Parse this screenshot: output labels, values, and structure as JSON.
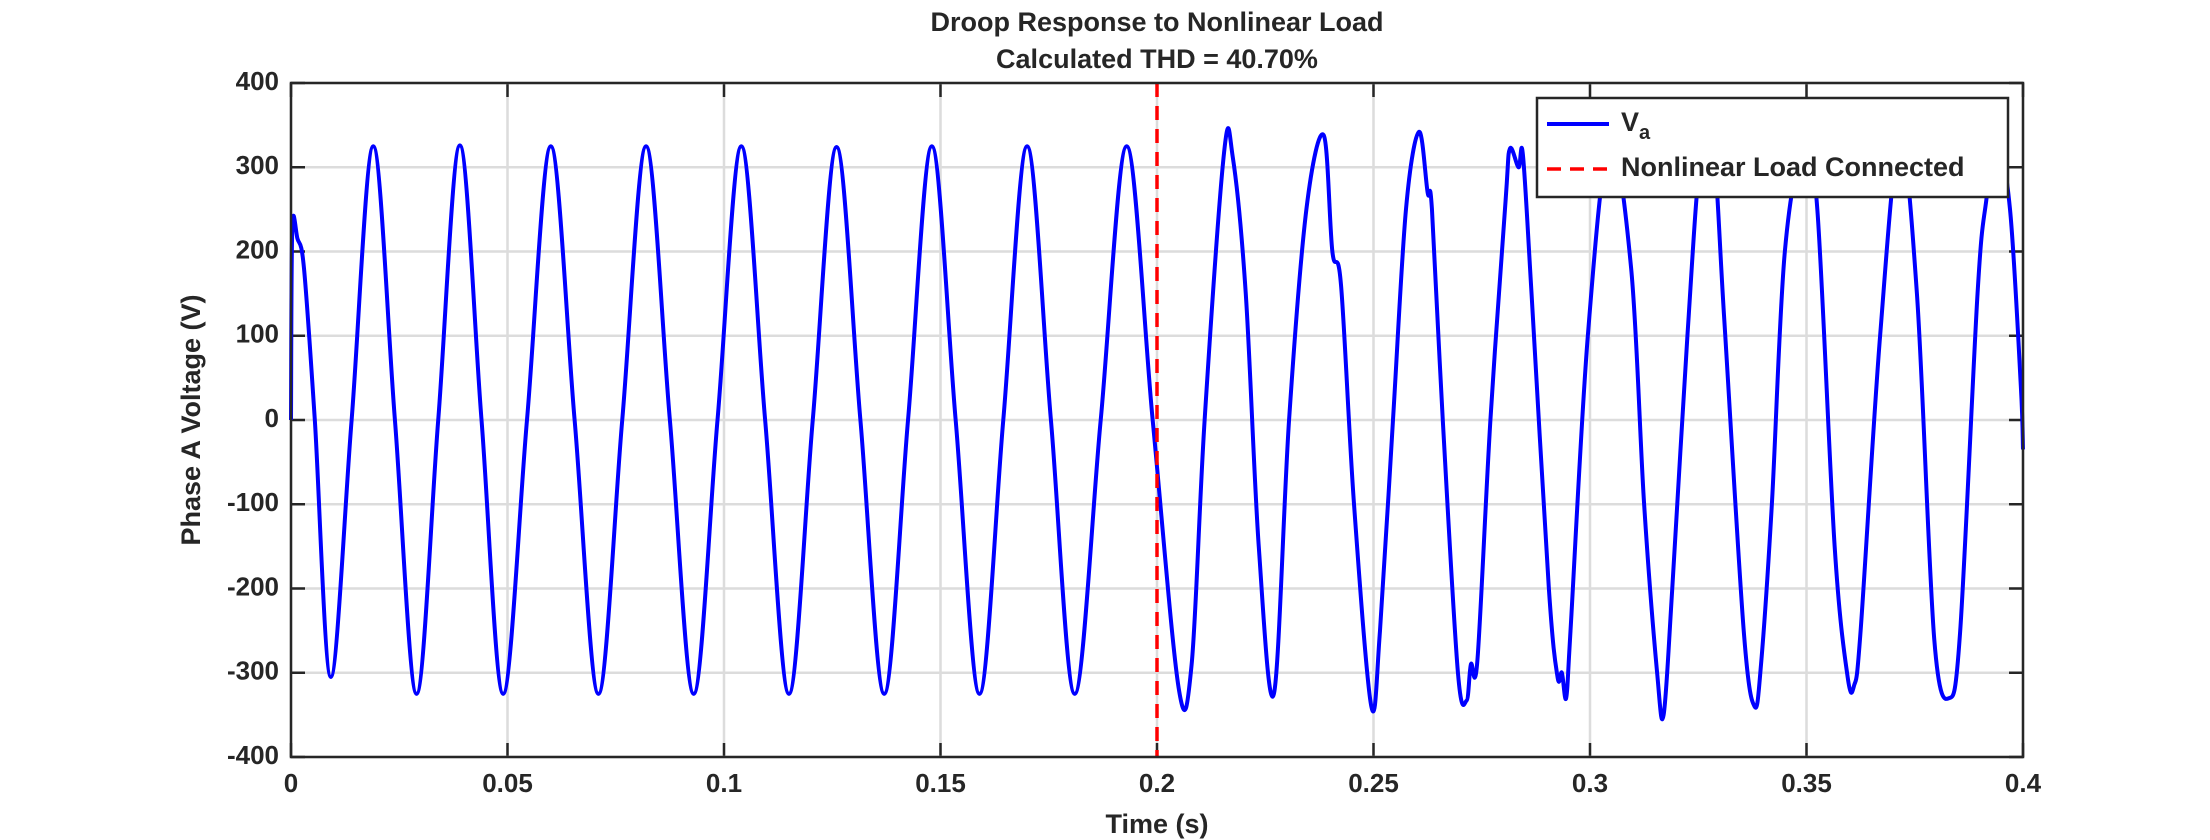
{
  "chart_data": {
    "type": "line",
    "title": "Droop Response to Nonlinear Load",
    "subtitle": "Calculated THD = 40.70%",
    "x_label": "Time (s)",
    "y_label": "Phase A Voltage (V)",
    "xlim": [
      0,
      0.4
    ],
    "ylim": [
      -400,
      400
    ],
    "xticks": [
      0,
      0.05,
      0.1,
      0.15,
      0.2,
      0.25,
      0.3,
      0.35,
      0.4
    ],
    "yticks": [
      -400,
      -300,
      -200,
      -100,
      0,
      100,
      200,
      300,
      400
    ],
    "grid": true,
    "legend": "northeast",
    "series": [
      {
        "name": "Va",
        "color": "#0000ff",
        "x": [
          0,
          0.0003,
          0.0015,
          0.003,
          0.0055,
          0.0092,
          0.014,
          0.019,
          0.024,
          0.029,
          0.034,
          0.039,
          0.044,
          0.049,
          0.0545,
          0.06,
          0.0655,
          0.071,
          0.0765,
          0.082,
          0.0875,
          0.093,
          0.0985,
          0.104,
          0.1095,
          0.115,
          0.1205,
          0.126,
          0.1315,
          0.137,
          0.1425,
          0.148,
          0.1535,
          0.159,
          0.1645,
          0.17,
          0.1755,
          0.181,
          0.187,
          0.193,
          0.199,
          0.205,
          0.208,
          0.211,
          0.2155,
          0.2175,
          0.2205,
          0.2235,
          0.227,
          0.2305,
          0.2345,
          0.2385,
          0.2405,
          0.2425,
          0.2455,
          0.2495,
          0.2515,
          0.2545,
          0.2575,
          0.2605,
          0.2625,
          0.2635,
          0.266,
          0.2695,
          0.2715,
          0.2725,
          0.274,
          0.277,
          0.2805,
          0.2815,
          0.2835,
          0.2845,
          0.2865,
          0.2905,
          0.2925,
          0.2935,
          0.2945,
          0.2955,
          0.2995,
          0.3045,
          0.3095,
          0.3125,
          0.3155,
          0.317,
          0.319,
          0.3225,
          0.3255,
          0.3285,
          0.331,
          0.3355,
          0.338,
          0.3395,
          0.342,
          0.345,
          0.3495,
          0.3525,
          0.3565,
          0.3595,
          0.361,
          0.3625,
          0.367,
          0.3715,
          0.3755,
          0.3795,
          0.383,
          0.3855,
          0.3895,
          0.3915,
          0.394,
          0.397,
          0.3995,
          0.4
        ],
        "values": [
          0,
          228,
          215,
          180,
          0,
          -305,
          0,
          325,
          0,
          -325,
          0,
          326,
          0,
          -325,
          0,
          325,
          0,
          -325,
          0,
          325,
          0,
          -325,
          0,
          325,
          0,
          -325,
          0,
          324,
          0,
          -325,
          0,
          325,
          0,
          -325,
          0,
          325,
          0,
          -325,
          0,
          325,
          0,
          -318,
          -290,
          0,
          318,
          312,
          150,
          -150,
          -325,
          0,
          250,
          338,
          200,
          160,
          -100,
          -340,
          -250,
          0,
          250,
          342,
          270,
          250,
          0,
          -300,
          -333,
          -290,
          -285,
          0,
          260,
          322,
          300,
          315,
          150,
          -200,
          -305,
          -300,
          -330,
          -250,
          100,
          330,
          180,
          -100,
          -300,
          -350,
          -200,
          100,
          310,
          320,
          120,
          -250,
          -340,
          -290,
          -100,
          200,
          330,
          250,
          -150,
          -305,
          -315,
          -250,
          100,
          330,
          150,
          -260,
          -330,
          -250,
          150,
          260,
          330,
          250,
          40,
          -35
        ]
      }
    ],
    "vlines": [
      {
        "name": "Nonlinear Load Connected",
        "x": 0.2,
        "color": "#ff0000"
      }
    ]
  }
}
